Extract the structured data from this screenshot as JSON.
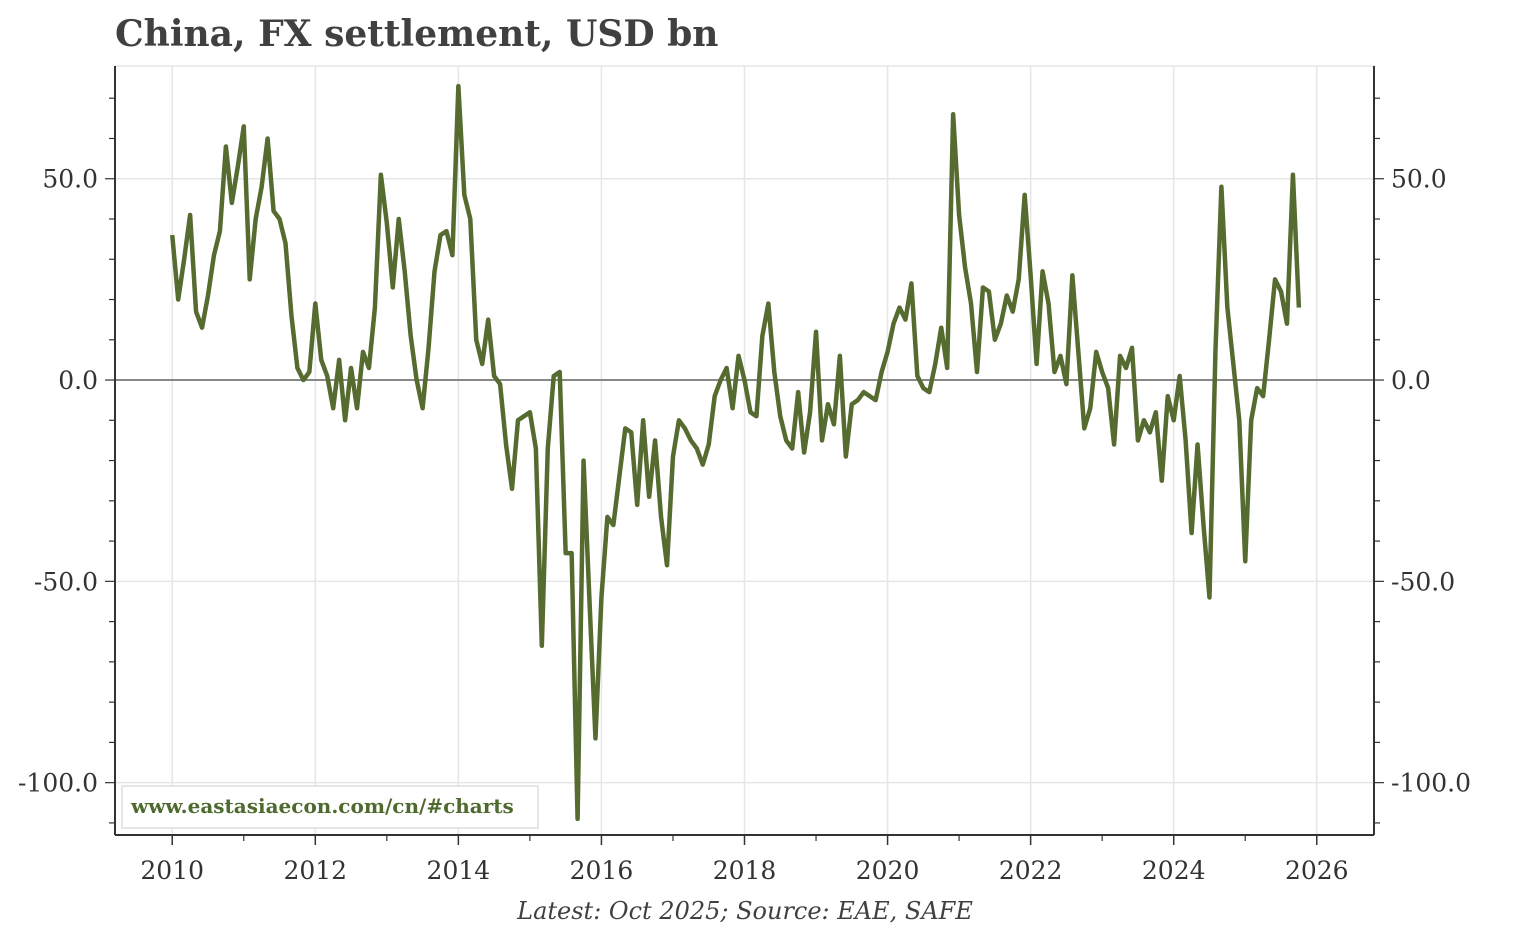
{
  "chart_data": {
    "type": "line",
    "title": "China, FX settlement, USD bn",
    "xlabel": "",
    "ylabel": "",
    "source_note": "Latest: Oct 2025; Source: EAE, SAFE",
    "watermark": "www.eastasiaecon.com/cn/#charts",
    "xlim": [
      2009.2,
      2026.8
    ],
    "ylim": [
      -113,
      78
    ],
    "x_ticks": [
      "2010",
      "2012",
      "2014",
      "2016",
      "2018",
      "2020",
      "2022",
      "2024",
      "2026"
    ],
    "y_ticks_left": [
      "50.0",
      "0.0",
      "-50.0",
      "-100.0"
    ],
    "y_ticks_right": [
      "50.0",
      "0.0",
      "-50.0",
      "-100.0"
    ],
    "grid": true,
    "zero_line": true,
    "series": [
      {
        "color": "#556b2f",
        "start": "2010-01",
        "frequency": "monthly",
        "values": [
          36,
          20,
          30,
          41,
          17,
          13,
          21,
          31,
          37,
          58,
          44,
          53,
          63,
          25,
          40,
          48,
          60,
          42,
          40,
          34,
          16,
          3,
          0,
          2,
          19,
          5,
          1,
          -7,
          5,
          -10,
          3,
          -7,
          7,
          3,
          18,
          51,
          39,
          23,
          40,
          27,
          11,
          0,
          -7,
          8,
          27,
          36,
          37,
          31,
          73,
          46,
          40,
          10,
          4,
          15,
          1,
          -1,
          -16,
          -27,
          -10,
          -9,
          -8,
          -17,
          -66,
          -17,
          1,
          2,
          -43,
          -43,
          -109,
          -20,
          -55,
          -89,
          -54,
          -34,
          -36,
          -24,
          -12,
          -13,
          -31,
          -10,
          -29,
          -15,
          -34,
          -46,
          -19,
          -10,
          -12,
          -15,
          -17,
          -21,
          -16,
          -4,
          0,
          3,
          -7,
          6,
          0,
          -8,
          -9,
          11,
          19,
          2,
          -9,
          -15,
          -17,
          -3,
          -18,
          -8,
          12,
          -15,
          -6,
          -11,
          6,
          -19,
          -6,
          -5,
          -3,
          -4,
          -5,
          2,
          7,
          14,
          18,
          15,
          24,
          1,
          -2,
          -3,
          4,
          13,
          3,
          66,
          41,
          28,
          19,
          2,
          23,
          22,
          10,
          14,
          21,
          17,
          25,
          46,
          26,
          4,
          27,
          19,
          2,
          6,
          -1,
          26,
          7,
          -12,
          -7,
          7,
          2,
          -2,
          -16,
          6,
          3,
          8,
          -15,
          -10,
          -13,
          -8,
          -25,
          -4,
          -10,
          1,
          -15,
          -38,
          -16,
          -36,
          -54,
          7,
          48,
          18,
          4,
          -10,
          -45,
          -10,
          -2,
          -4,
          10,
          25,
          22,
          14,
          51,
          18
        ]
      }
    ]
  }
}
